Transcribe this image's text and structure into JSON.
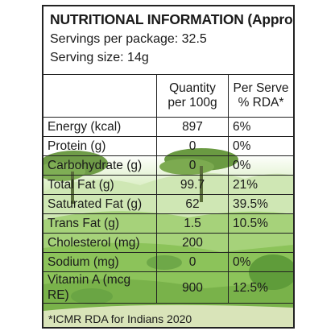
{
  "label": {
    "title": "NUTRITIONAL INFORMATION (Approx.)",
    "servings_per_package": "Servings per package: 32.5",
    "serving_size": "Serving size: 14g"
  },
  "table": {
    "headers": [
      "",
      "Quantity per 100g",
      "Per Serve % RDA*"
    ],
    "rows": [
      {
        "nutrient": "Energy (kcal)",
        "qty": "897",
        "rda": "6%"
      },
      {
        "nutrient": "Protein (g)",
        "qty": "0",
        "rda": "0%"
      },
      {
        "nutrient": "Carbohydrate (g)",
        "qty": "0",
        "rda": "0%"
      },
      {
        "nutrient": "Total Fat (g)",
        "qty": "99.7",
        "rda": "21%"
      },
      {
        "nutrient": "Saturated Fat (g)",
        "qty": "62",
        "rda": "39.5%"
      },
      {
        "nutrient": "Trans Fat (g)",
        "qty": "1.5",
        "rda": "10.5%"
      },
      {
        "nutrient": "Cholesterol (mg)",
        "qty": "200",
        "rda": ""
      },
      {
        "nutrient": "Sodium (mg)",
        "qty": "0",
        "rda": "0%"
      },
      {
        "nutrient": "Vitamin A (mcg RE)",
        "qty": "900",
        "rda": "12.5%"
      }
    ]
  },
  "footnote": "*ICMR RDA for Indians 2020",
  "colors": {
    "border": "#222222",
    "text": "#1a1a1a",
    "grass": "#8ec45c",
    "tree": "#5f8f3a"
  }
}
